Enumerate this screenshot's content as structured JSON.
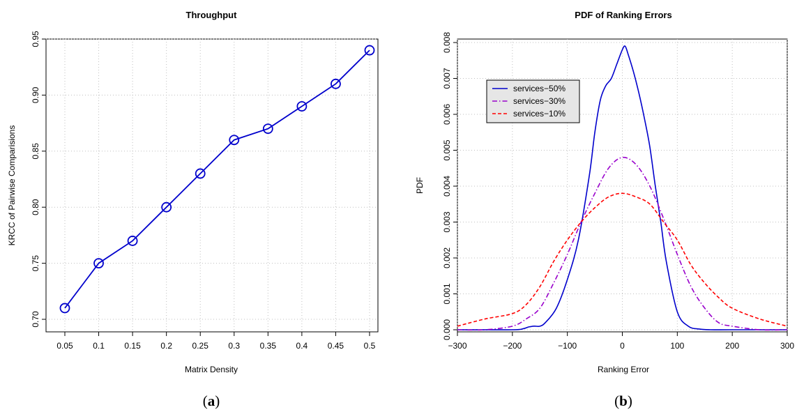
{
  "chart_data": [
    {
      "type": "line",
      "title": "Throughput",
      "xlabel": "Matrix Density",
      "ylabel": "KRCC of Pairwise Comparisions",
      "caption": "a",
      "categories": [
        "0.05",
        "0.1",
        "0.15",
        "0.2",
        "0.25",
        "0.3",
        "0.35",
        "0.4",
        "0.45",
        "0.5"
      ],
      "series": [
        {
          "values": [
            0.71,
            0.75,
            0.77,
            0.8,
            0.83,
            0.86,
            0.87,
            0.89,
            0.91,
            0.94
          ],
          "color": "#0000cc",
          "marker": "circle"
        }
      ],
      "ylim": [
        0.7,
        0.95
      ],
      "yticks": [
        "0.70",
        "0.75",
        "0.80",
        "0.85",
        "0.90",
        "0.95"
      ],
      "grid": true
    },
    {
      "type": "line",
      "title": "PDF of Ranking Errors",
      "xlabel": "Ranking Error",
      "ylabel": "PDF",
      "caption": "b",
      "xlim": [
        -300,
        300
      ],
      "ylim": [
        0,
        0.008
      ],
      "xticks": [
        "−300",
        "−200",
        "−100",
        "0",
        "100",
        "200",
        "300"
      ],
      "yticks": [
        "0.000",
        "0.001",
        "0.002",
        "0.003",
        "0.004",
        "0.005",
        "0.006",
        "0.007",
        "0.008"
      ],
      "legend_position": "top-left",
      "grid": true,
      "series": [
        {
          "name": "services−50%",
          "color": "#0000cc",
          "dash": "solid",
          "x": [
            -300,
            -200,
            -180,
            -170,
            -160,
            -150,
            -140,
            -120,
            -100,
            -80,
            -60,
            -50,
            -40,
            -30,
            -20,
            -10,
            0,
            5,
            10,
            20,
            30,
            40,
            50,
            60,
            70,
            80,
            100,
            120,
            140,
            160,
            200,
            300
          ],
          "y": [
            0,
            0,
            3e-05,
            8e-05,
            0.0001,
            0.0001,
            0.0002,
            0.0006,
            0.0014,
            0.0025,
            0.0043,
            0.0055,
            0.0064,
            0.0068,
            0.007,
            0.0074,
            0.0078,
            0.0079,
            0.0077,
            0.0072,
            0.0066,
            0.0059,
            0.0051,
            0.004,
            0.003,
            0.0019,
            0.0005,
            0.0001,
            2e-05,
            0,
            0,
            0
          ]
        },
        {
          "name": "services−30%",
          "color": "#9900cc",
          "dash": "dashdot",
          "x": [
            -300,
            -250,
            -200,
            -175,
            -150,
            -125,
            -100,
            -75,
            -50,
            -25,
            0,
            25,
            50,
            75,
            100,
            125,
            150,
            175,
            200,
            250,
            300
          ],
          "y": [
            0,
            0,
            0.0001,
            0.0003,
            0.0006,
            0.0013,
            0.0021,
            0.003,
            0.0038,
            0.0045,
            0.0048,
            0.0046,
            0.004,
            0.0031,
            0.0021,
            0.0012,
            0.0006,
            0.0002,
            0.0001,
            0,
            0
          ]
        },
        {
          "name": "services−10%",
          "color": "#ff0000",
          "dash": "dashed",
          "x": [
            -300,
            -250,
            -200,
            -175,
            -150,
            -125,
            -100,
            -75,
            -50,
            -25,
            0,
            25,
            50,
            75,
            100,
            125,
            150,
            175,
            200,
            250,
            300
          ],
          "y": [
            0.0001,
            0.0003,
            0.00045,
            0.0007,
            0.0012,
            0.0019,
            0.0025,
            0.003,
            0.0034,
            0.0037,
            0.0038,
            0.0037,
            0.0035,
            0.003,
            0.0025,
            0.0018,
            0.0013,
            0.0009,
            0.0006,
            0.0003,
            0.0001
          ]
        }
      ]
    }
  ]
}
